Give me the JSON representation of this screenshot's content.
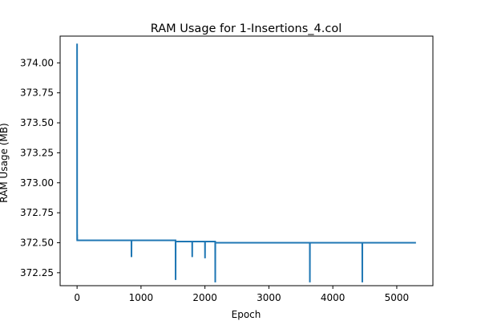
{
  "chart_data": {
    "type": "line",
    "title": "RAM Usage for 1-Insertions_4.col",
    "xlabel": "Epoch",
    "ylabel": "RAM Usage (MB)",
    "xlim": [
      -265,
      5565
    ],
    "ylim": [
      372.142,
      374.223
    ],
    "xticks": [
      0,
      1000,
      2000,
      3000,
      4000,
      5000
    ],
    "yticks": [
      372.25,
      372.5,
      372.75,
      373.0,
      373.25,
      373.5,
      373.75,
      374.0
    ],
    "grid": false,
    "colors": {
      "line": "#1f77b4"
    },
    "series": [
      {
        "x": [
          0,
          1,
          2,
          3,
          5,
          10,
          20,
          850,
          851,
          852,
          853,
          860,
          1540,
          1541,
          1542,
          1543,
          1550,
          1800,
          1801,
          1802,
          1803,
          1810,
          2000,
          2001,
          2002,
          2003,
          2010,
          2160,
          2161,
          2162,
          2163,
          2170,
          2200,
          3640,
          3641,
          3642,
          3643,
          3650,
          4460,
          4461,
          4462,
          4463,
          4470,
          5300
        ],
        "y": [
          374.16,
          372.52,
          372.57,
          372.52,
          372.52,
          372.52,
          372.52,
          372.52,
          372.38,
          372.52,
          372.52,
          372.52,
          372.52,
          372.19,
          372.51,
          372.51,
          372.51,
          372.51,
          372.38,
          372.51,
          372.51,
          372.51,
          372.51,
          372.37,
          372.51,
          372.51,
          372.51,
          372.51,
          372.17,
          372.5,
          372.5,
          372.5,
          372.5,
          372.5,
          372.17,
          372.5,
          372.5,
          372.5,
          372.5,
          372.17,
          372.5,
          372.5,
          372.5,
          372.5
        ]
      }
    ]
  }
}
